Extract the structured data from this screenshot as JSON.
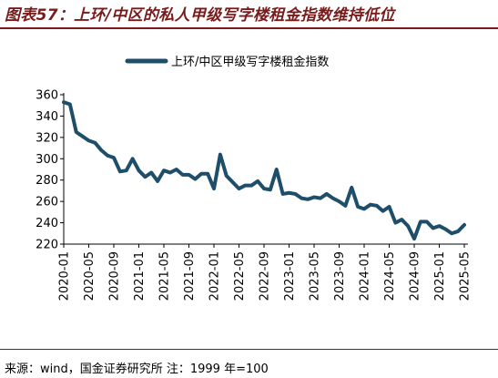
{
  "title": "图表57：上环/中区的私人甲级写字楼租金指数维持低位",
  "source": "来源：wind，国金证券研究所 注：1999 年=100",
  "colors": {
    "series": "#1f4e6b",
    "title": "#7a1b1b"
  },
  "chart_data": {
    "type": "line",
    "legend": {
      "placement": "top-center"
    },
    "ylim": [
      220,
      360
    ],
    "yticks": [
      220,
      240,
      260,
      280,
      300,
      320,
      340,
      360
    ],
    "xticks": [
      "2020-01",
      "2020-05",
      "2020-09",
      "2021-01",
      "2021-05",
      "2021-09",
      "2022-01",
      "2022-05",
      "2022-09",
      "2023-01",
      "2023-05",
      "2023-09",
      "2024-01",
      "2024-05",
      "2024-09",
      "2025-01",
      "2025-05"
    ],
    "xlabel": "",
    "ylabel": "",
    "grid": false,
    "series": [
      {
        "name": "上环/中区甲级写字楼租金指数",
        "x": [
          "2020-01",
          "2020-02",
          "2020-03",
          "2020-04",
          "2020-05",
          "2020-06",
          "2020-07",
          "2020-08",
          "2020-09",
          "2020-10",
          "2020-11",
          "2020-12",
          "2021-01",
          "2021-02",
          "2021-03",
          "2021-04",
          "2021-05",
          "2021-06",
          "2021-07",
          "2021-08",
          "2021-09",
          "2021-10",
          "2021-11",
          "2021-12",
          "2022-01",
          "2022-02",
          "2022-03",
          "2022-04",
          "2022-05",
          "2022-06",
          "2022-07",
          "2022-08",
          "2022-09",
          "2022-10",
          "2022-11",
          "2022-12",
          "2023-01",
          "2023-02",
          "2023-03",
          "2023-04",
          "2023-05",
          "2023-06",
          "2023-07",
          "2023-08",
          "2023-09",
          "2023-10",
          "2023-11",
          "2023-12",
          "2024-01",
          "2024-02",
          "2024-03",
          "2024-04",
          "2024-05",
          "2024-06",
          "2024-07",
          "2024-08",
          "2024-09",
          "2024-10",
          "2024-11",
          "2024-12",
          "2025-01",
          "2025-02",
          "2025-03",
          "2025-04",
          "2025-05"
        ],
        "values": [
          353,
          351,
          325,
          321,
          317,
          315,
          308,
          303,
          301,
          288,
          289,
          300,
          289,
          283,
          287,
          279,
          289,
          287,
          290,
          285,
          285,
          281,
          286,
          286,
          272,
          304,
          284,
          278,
          272,
          275,
          275,
          279,
          272,
          271,
          290,
          267,
          268,
          267,
          263,
          262,
          264,
          263,
          267,
          263,
          260,
          256,
          273,
          255,
          253,
          257,
          256,
          251,
          255,
          240,
          243,
          237,
          225,
          241,
          241,
          235,
          237,
          234,
          230,
          232,
          238
        ]
      }
    ]
  }
}
